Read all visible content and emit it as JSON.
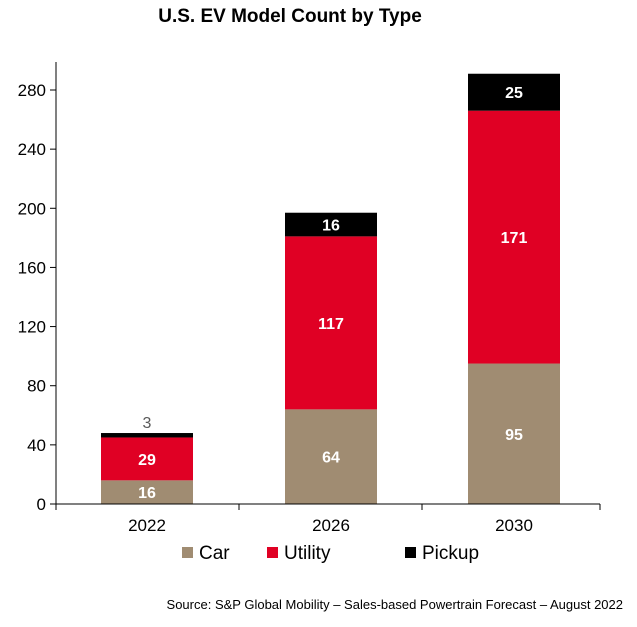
{
  "chart_data": {
    "type": "bar",
    "stacked": true,
    "title": "U.S. EV Model Count by Type",
    "categories": [
      "2022",
      "2026",
      "2030"
    ],
    "series": [
      {
        "name": "Car",
        "values": [
          16,
          64,
          95
        ],
        "color": "#A08C72"
      },
      {
        "name": "Utility",
        "values": [
          29,
          117,
          171
        ],
        "color": "#E00024"
      },
      {
        "name": "Pickup",
        "values": [
          3,
          16,
          25
        ],
        "color": "#000000"
      }
    ],
    "ylim": [
      0,
      280
    ],
    "yticks": [
      0,
      40,
      80,
      120,
      160,
      200,
      240,
      280
    ],
    "grid": false,
    "legend_position": "bottom",
    "source": "Source: S&P Global Mobility – Sales-based Powertrain Forecast – August 2022"
  }
}
